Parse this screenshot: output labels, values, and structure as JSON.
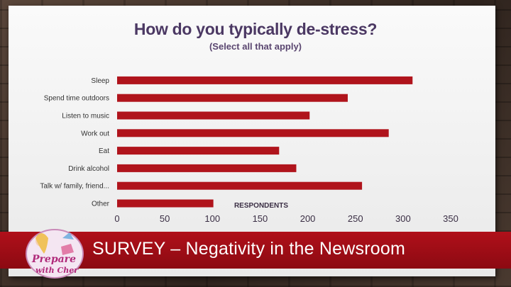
{
  "slide": {
    "title": "How do you typically de-stress?",
    "subtitle": "(Select all that apply)",
    "banner": "SURVEY – Negativity in the Newsroom",
    "logo_text_top": "Prepare",
    "logo_text_bottom": "with Cher"
  },
  "colors": {
    "bar": "#b0141c",
    "title": "#4b3863",
    "banner": "#a00d16"
  },
  "chart_data": {
    "type": "bar",
    "orientation": "horizontal",
    "categories": [
      "Sleep",
      "Spend time outdoors",
      "Listen to music",
      "Work out",
      "Eat",
      "Drink alcohol",
      "Talk w/ family, friend...",
      "Other"
    ],
    "values": [
      310,
      242,
      202,
      285,
      170,
      188,
      257,
      101
    ],
    "title": "How do you typically de-stress?",
    "subtitle": "(Select all that apply)",
    "xlabel": "RESPONDENTS",
    "ylabel": "",
    "xlim": [
      0,
      350
    ],
    "xticks": [
      0,
      50,
      100,
      150,
      200,
      250,
      300,
      350
    ],
    "grid": false,
    "legend": "none"
  }
}
